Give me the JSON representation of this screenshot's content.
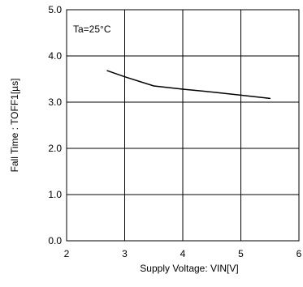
{
  "chart_data": {
    "type": "line",
    "title": "",
    "xlabel": "Supply Voltage: VIN[V]",
    "ylabel": "Fall Time : TOFF1[µs]",
    "xlim": [
      2,
      6
    ],
    "ylim": [
      0.0,
      5.0
    ],
    "x_ticks": [
      2,
      3,
      4,
      5,
      6
    ],
    "x_tick_labels": [
      "2",
      "3",
      "4",
      "5",
      "6"
    ],
    "y_ticks": [
      0.0,
      1.0,
      2.0,
      3.0,
      4.0,
      5.0
    ],
    "y_tick_labels": [
      "0.0",
      "1.0",
      "2.0",
      "3.0",
      "4.0",
      "5.0"
    ],
    "grid": true,
    "annotation": "Ta=25°C",
    "line_color": "#000000",
    "series": [
      {
        "x": [
          2.7,
          3.0,
          3.5,
          4.0,
          4.5,
          5.0,
          5.5
        ],
        "y": [
          3.68,
          3.55,
          3.35,
          3.28,
          3.22,
          3.15,
          3.08
        ]
      }
    ]
  }
}
